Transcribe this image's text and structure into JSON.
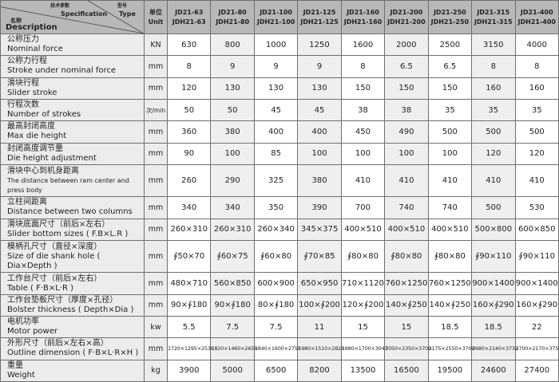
{
  "header": {
    "spec_cn": "技术参数",
    "spec_en": "Specification",
    "type_cn": "型号",
    "type_en": "Type",
    "desc_cn": "名称",
    "desc_en": "Description",
    "unit_cn": "单位",
    "unit_en": "Unit",
    "models": [
      [
        "JD21-63",
        "JDH21-63"
      ],
      [
        "JD21-80",
        "JDH21-80"
      ],
      [
        "JD21-100",
        "JDH21-100"
      ],
      [
        "JD21-125",
        "JDH21-125"
      ],
      [
        "JD21-160",
        "JDH21-160"
      ],
      [
        "JD21-200",
        "JDH21-200"
      ],
      [
        "JD21-250",
        "JDH21-250"
      ],
      [
        "JD21-315",
        "JDH21-315"
      ],
      [
        "JD21-400",
        "JDH21-400"
      ]
    ]
  },
  "rows": [
    {
      "cn": "公称压力",
      "en": "Nominal force",
      "unit": "KN",
      "values": [
        "630",
        "800",
        "1000",
        "1250",
        "1600",
        "2000",
        "2500",
        "3150",
        "4000"
      ]
    },
    {
      "cn": "公称力行程",
      "en": "Stroke under nominal force",
      "unit": "mm",
      "values": [
        "8",
        "9",
        "9",
        "9",
        "8",
        "6.5",
        "6.5",
        "8",
        "8"
      ]
    },
    {
      "cn": "滑块行程",
      "en": "Slider stroke",
      "unit": "mm",
      "values": [
        "120",
        "130",
        "130",
        "130",
        "150",
        "150",
        "150",
        "160",
        "160"
      ]
    },
    {
      "cn": "行程次数",
      "en": "Number of strokes",
      "unit": "次/min",
      "values": [
        "50",
        "50",
        "45",
        "45",
        "38",
        "38",
        "35",
        "35",
        "35"
      ]
    },
    {
      "cn": "最高封闭高度",
      "en": "Max die height",
      "unit": "mm",
      "values": [
        "360",
        "380",
        "400",
        "400",
        "450",
        "490",
        "500",
        "500",
        "500"
      ]
    },
    {
      "cn": "封闭高度调节量",
      "en": "Die height adjustment",
      "unit": "mm",
      "values": [
        "90",
        "100",
        "85",
        "100",
        "100",
        "100",
        "100",
        "120",
        "120"
      ]
    },
    {
      "cn": "滑块中心到机身距离",
      "en": "The distance between ram center and press body",
      "unit": "mm",
      "values": [
        "260",
        "290",
        "325",
        "380",
        "410",
        "410",
        "410",
        "410",
        "410"
      ]
    },
    {
      "cn": "立柱间距离",
      "en": "Distance between two columns",
      "unit": "mm",
      "values": [
        "340",
        "340",
        "350",
        "390",
        "700",
        "740",
        "740",
        "500",
        "530"
      ]
    },
    {
      "cn": "滑块底面尺寸（前后×左右）",
      "en": "Slider bottom sizes ( F.B×L.R )",
      "unit": "mm",
      "values": [
        "260×310",
        "260×310",
        "260×340",
        "345×375",
        "400×510",
        "400×510",
        "400×510",
        "500×800",
        "600×850"
      ]
    },
    {
      "cn": "模柄孔尺寸（直径×深度）",
      "en": "Size of die shank hole ( Dia×Depth )",
      "unit": "mm",
      "values": [
        "∮50×70",
        "∮60×75",
        "∮60×80",
        "∮70×85",
        "∮80×80",
        "∮80×80",
        "∮80×80",
        "∮90×110",
        "∮90×110"
      ]
    },
    {
      "cn": "工作台尺寸（前后×左右）",
      "en": "Table ( F·B×L·R )",
      "unit": "mm",
      "values": [
        "480×710",
        "560×850",
        "600×900",
        "650×950",
        "710×1120",
        "760×1250",
        "760×1250",
        "900×1400",
        "900×1400"
      ]
    },
    {
      "cn": "工作台垫板尺寸（厚度×孔径）",
      "en": "Bolster thickness ( Depth×Dia )",
      "unit": "mm",
      "values": [
        "90×∮180",
        "90×∮180",
        "80×∮180",
        "100×∮200",
        "120×∮200",
        "140×∮250",
        "140×∮250",
        "160×∮290",
        "160×∮290"
      ]
    },
    {
      "cn": "电机功率",
      "en": "Motor power",
      "unit": "kw",
      "values": [
        "5.5",
        "7.5",
        "7.5",
        "11",
        "15",
        "15",
        "18.5",
        "18.5",
        "22"
      ]
    },
    {
      "cn": "外形尺寸（前后×左右×高）",
      "en": "Outline dimension ( F·B×L·R×H )",
      "unit": "mm",
      "values": [
        "1720×1295×2530",
        "1820×1460×2650",
        "1840×1600×2750",
        "1980×1510×2820",
        "1980×1700×3047",
        "2050×2350×3700",
        "2175×2550×3700",
        "2680×2140×3730",
        "2700×2170×3750"
      ]
    },
    {
      "cn": "重量",
      "en": "Weight",
      "unit": "kg",
      "values": [
        "3900",
        "5000",
        "6500",
        "8200",
        "13500",
        "16500",
        "19500",
        "24600",
        "27400"
      ]
    }
  ]
}
